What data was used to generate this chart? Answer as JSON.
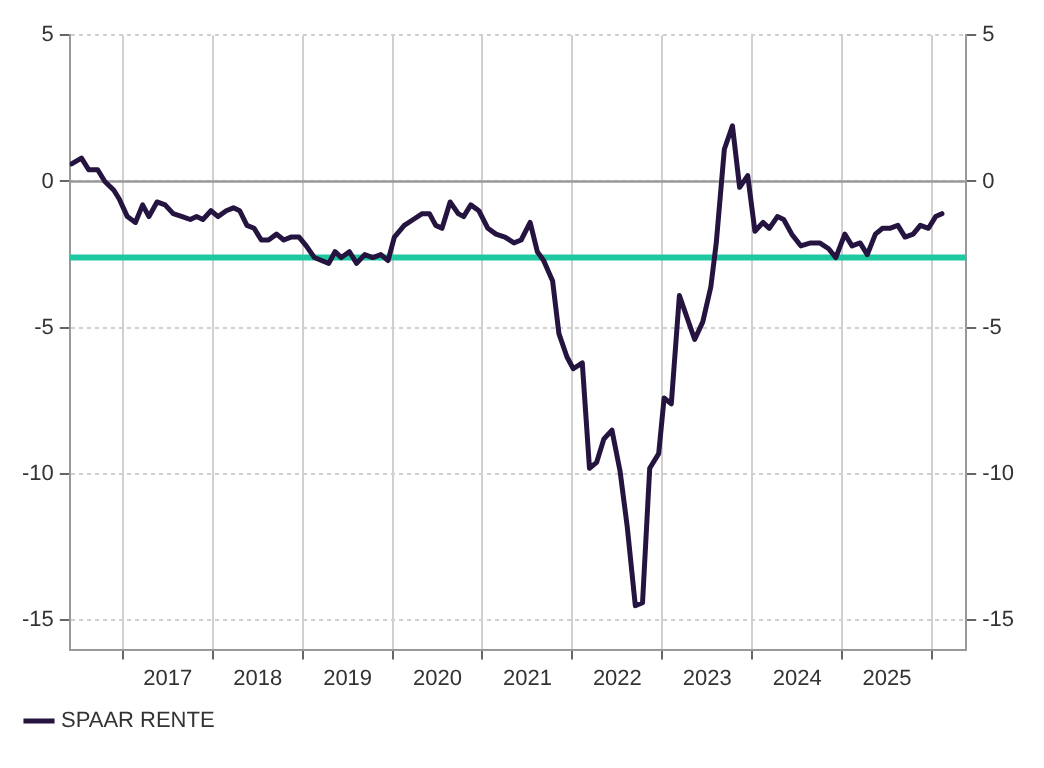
{
  "chart_data": {
    "type": "line",
    "x": [
      2016.43,
      2016.54,
      2016.62,
      2016.72,
      2016.8,
      2016.9,
      2016.96,
      2017.05,
      2017.14,
      2017.22,
      2017.29,
      2017.38,
      2017.47,
      2017.56,
      2017.66,
      2017.75,
      2017.82,
      2017.89,
      2017.98,
      2018.06,
      2018.15,
      2018.23,
      2018.3,
      2018.38,
      2018.46,
      2018.54,
      2018.62,
      2018.71,
      2018.79,
      2018.87,
      2018.96,
      2019.04,
      2019.13,
      2019.21,
      2019.29,
      2019.36,
      2019.43,
      2019.52,
      2019.6,
      2019.69,
      2019.78,
      2019.87,
      2019.95,
      2020.02,
      2020.13,
      2020.23,
      2020.33,
      2020.41,
      2020.48,
      2020.55,
      2020.64,
      2020.73,
      2020.79,
      2020.87,
      2020.96,
      2021.06,
      2021.15,
      2021.25,
      2021.35,
      2021.43,
      2021.53,
      2021.61,
      2021.68,
      2021.78,
      2021.85,
      2021.94,
      2022.01,
      2022.11,
      2022.19,
      2022.27,
      2022.35,
      2022.44,
      2022.53,
      2022.61,
      2022.7,
      2022.78,
      2022.86,
      2022.96,
      2023.02,
      2023.1,
      2023.19,
      2023.36,
      2023.45,
      2023.54,
      2023.6,
      2023.69,
      2023.78,
      2023.86,
      2023.95,
      2024.03,
      2024.12,
      2024.19,
      2024.28,
      2024.35,
      2024.44,
      2024.54,
      2024.65,
      2024.75,
      2024.85,
      2024.93,
      2025.03,
      2025.11,
      2025.2,
      2025.28,
      2025.37,
      2025.45,
      2025.53,
      2025.62,
      2025.7,
      2025.79,
      2025.87,
      2025.96,
      2026.04,
      2026.11
    ],
    "series": [
      {
        "name": "SPAAR RENTE",
        "color": "#24143f",
        "values": [
          0.6,
          0.8,
          0.4,
          0.4,
          0.0,
          -0.3,
          -0.6,
          -1.2,
          -1.4,
          -0.8,
          -1.2,
          -0.7,
          -0.8,
          -1.1,
          -1.2,
          -1.3,
          -1.2,
          -1.3,
          -1.0,
          -1.2,
          -1.0,
          -0.9,
          -1.0,
          -1.5,
          -1.6,
          -2.0,
          -2.0,
          -1.8,
          -2.0,
          -1.9,
          -1.9,
          -2.2,
          -2.6,
          -2.7,
          -2.8,
          -2.4,
          -2.6,
          -2.4,
          -2.8,
          -2.5,
          -2.6,
          -2.5,
          -2.7,
          -1.9,
          -1.5,
          -1.3,
          -1.1,
          -1.1,
          -1.5,
          -1.6,
          -0.7,
          -1.1,
          -1.2,
          -0.8,
          -1.0,
          -1.6,
          -1.8,
          -1.9,
          -2.1,
          -2.0,
          -1.4,
          -2.4,
          -2.7,
          -3.4,
          -5.2,
          -6.0,
          -6.4,
          -6.2,
          -9.8,
          -9.6,
          -8.8,
          -8.5,
          -9.9,
          -11.8,
          -14.5,
          -14.4,
          -9.8,
          -9.3,
          -7.4,
          -7.6,
          -3.9,
          -5.4,
          -4.8,
          -3.6,
          -2.1,
          1.1,
          1.9,
          -0.2,
          0.2,
          -1.7,
          -1.4,
          -1.6,
          -1.2,
          -1.3,
          -1.8,
          -2.2,
          -2.1,
          -2.1,
          -2.3,
          -2.6,
          -1.8,
          -2.2,
          -2.1,
          -2.5,
          -1.8,
          -1.6,
          -1.6,
          -1.5,
          -1.9,
          -1.8,
          -1.5,
          -1.6,
          -1.2,
          -1.1
        ]
      }
    ],
    "xlim": [
      2016.41,
      2026.38
    ],
    "xticks": [
      {
        "value": 2017,
        "label": null
      },
      {
        "value": 2017.5,
        "label": "2017"
      },
      {
        "value": 2018,
        "label": null
      },
      {
        "value": 2018.5,
        "label": "2018"
      },
      {
        "value": 2019,
        "label": null
      },
      {
        "value": 2019.5,
        "label": "2019"
      },
      {
        "value": 2020,
        "label": null
      },
      {
        "value": 2020.5,
        "label": "2020"
      },
      {
        "value": 2021,
        "label": null
      },
      {
        "value": 2021.5,
        "label": "2021"
      },
      {
        "value": 2022,
        "label": null
      },
      {
        "value": 2022.5,
        "label": "2022"
      },
      {
        "value": 2023,
        "label": null
      },
      {
        "value": 2023.5,
        "label": "2023"
      },
      {
        "value": 2024,
        "label": null
      },
      {
        "value": 2024.5,
        "label": "2024"
      },
      {
        "value": 2025,
        "label": null
      },
      {
        "value": 2025.5,
        "label": "2025"
      },
      {
        "value": 2026,
        "label": null
      }
    ],
    "ylim": [
      -16,
      5
    ],
    "yticks": [
      -15,
      -10,
      -5,
      0,
      5
    ],
    "y2lim": [
      -16,
      5
    ],
    "y2ticks": [
      -15,
      -10,
      -5,
      0,
      5
    ],
    "ref_lines": [
      {
        "axis": "y",
        "value": 0,
        "color": "#9a9a9a"
      },
      {
        "axis": "y",
        "value": -2.6,
        "color": "#1ec8a0"
      }
    ],
    "grid": true,
    "legend": "bottom left",
    "marker": "none",
    "line_style": "solid"
  }
}
